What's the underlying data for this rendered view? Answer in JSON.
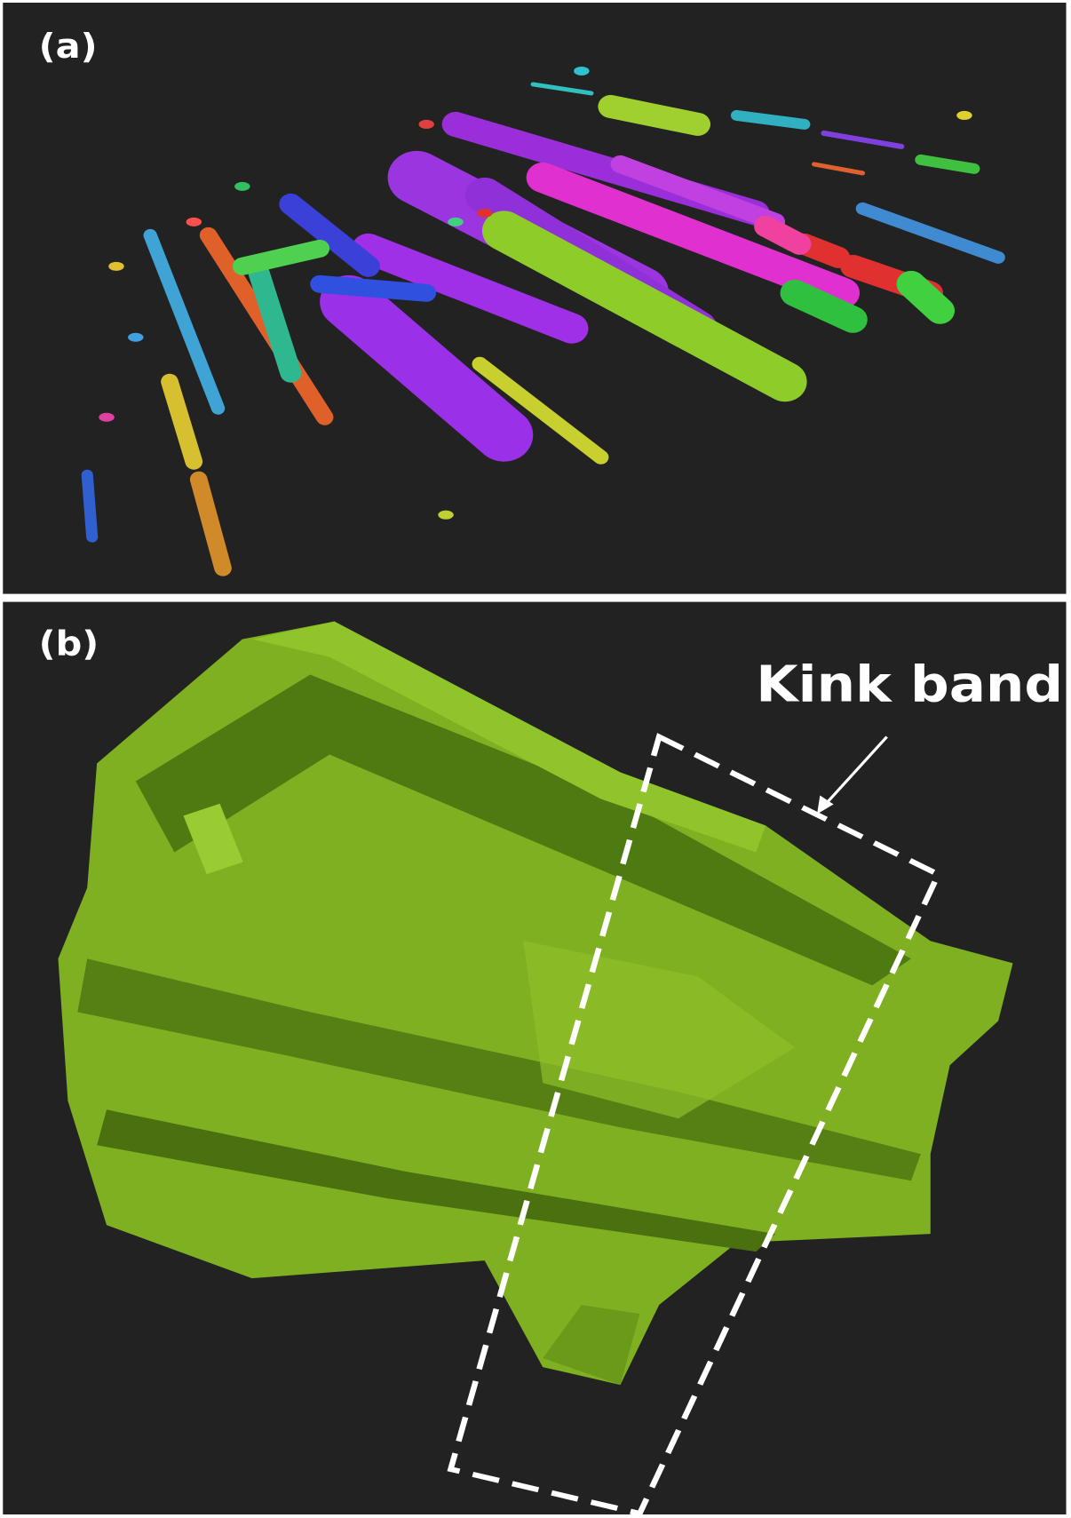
{
  "panels": [
    {
      "label": "(a)"
    },
    {
      "label": "(b)",
      "annotation": "Kink band"
    }
  ]
}
